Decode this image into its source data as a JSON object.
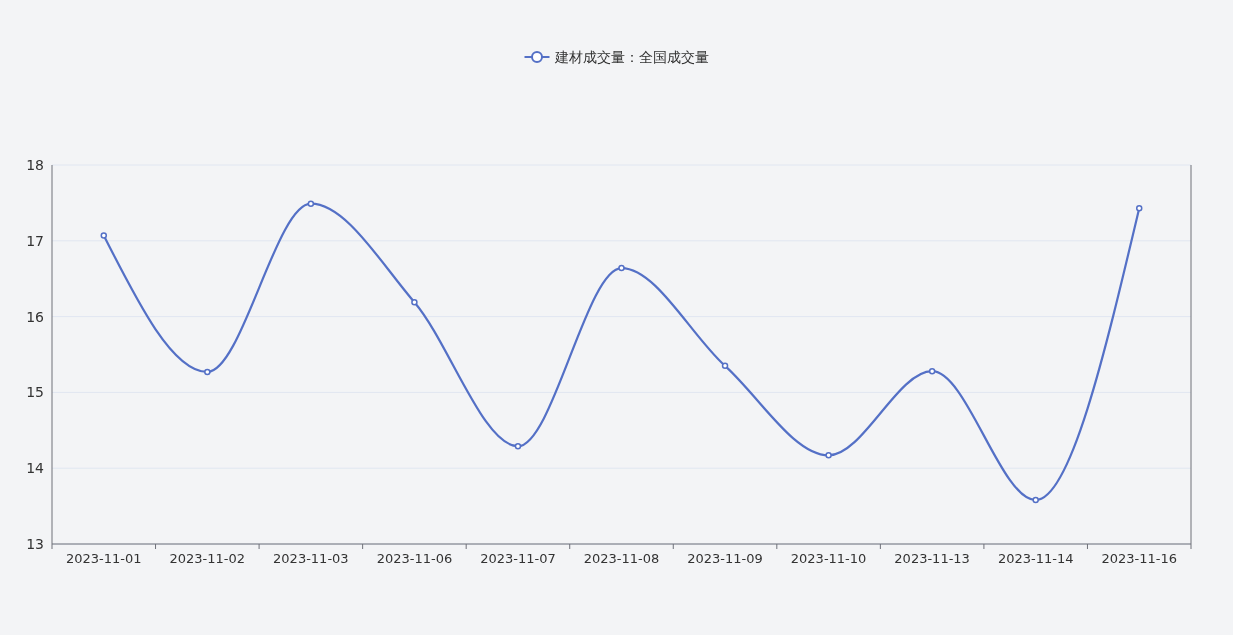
{
  "chart_data": {
    "type": "line",
    "categories": [
      "2023-11-01",
      "2023-11-02",
      "2023-11-03",
      "2023-11-06",
      "2023-11-07",
      "2023-11-08",
      "2023-11-09",
      "2023-11-10",
      "2023-11-13",
      "2023-11-14",
      "2023-11-16"
    ],
    "series": [
      {
        "name": "建材成交量：全国成交量",
        "color": "#5470c6",
        "values": [
          17.07,
          15.27,
          17.49,
          16.19,
          14.29,
          16.64,
          15.35,
          14.17,
          15.28,
          13.58,
          17.43
        ]
      }
    ],
    "ylim": [
      13,
      18
    ],
    "yticks": [
      13,
      14,
      15,
      16,
      17,
      18
    ],
    "grid": "y",
    "legend": "top",
    "marker": "circle",
    "line_style": "solid"
  }
}
